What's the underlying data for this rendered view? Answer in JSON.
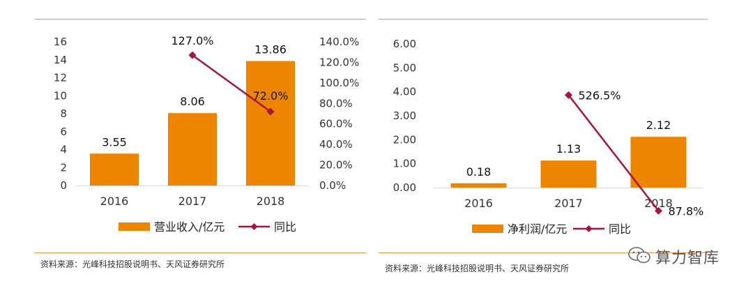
{
  "colors": {
    "bar": "#ee8500",
    "line": "#a8143c",
    "rule": "#e8954e"
  },
  "left": {
    "source": "资料来源：光峰科技招股说明书、天风证券研究所",
    "chart_data": {
      "type": "bar",
      "categories": [
        "2016",
        "2017",
        "2018"
      ],
      "series": [
        {
          "name": "营业收入/亿元",
          "type": "bar",
          "axis": "left",
          "values": [
            3.55,
            8.06,
            13.86
          ],
          "labels": [
            "3.55",
            "8.06",
            "13.86"
          ]
        },
        {
          "name": "同比",
          "type": "line",
          "axis": "right",
          "values": [
            null,
            127.0,
            72.0
          ],
          "labels": [
            "",
            "127.0%",
            "72.0%"
          ]
        }
      ],
      "y_left": {
        "min": 0,
        "max": 16,
        "ticks": [
          "0",
          "2",
          "4",
          "6",
          "8",
          "10",
          "12",
          "14",
          "16"
        ]
      },
      "y_right": {
        "min": 0,
        "max": 140,
        "ticks": [
          "0.0%",
          "20.0%",
          "40.0%",
          "60.0%",
          "80.0%",
          "100.0%",
          "120.0%",
          "140.0%"
        ]
      },
      "legend": "bottom",
      "grid": false
    }
  },
  "right": {
    "source": "资料来源：光峰科技招股说明书、天风证券研究所",
    "chart_data": {
      "type": "bar",
      "categories": [
        "2016",
        "2017",
        "2018"
      ],
      "series": [
        {
          "name": "净利润/亿元",
          "type": "bar",
          "axis": "left",
          "values": [
            0.18,
            1.13,
            2.12
          ],
          "labels": [
            "0.18",
            "1.13",
            "2.12"
          ]
        },
        {
          "name": "同比",
          "type": "line",
          "axis": "right",
          "values": [
            null,
            526.5,
            87.8
          ],
          "labels": [
            "",
            "526.5%",
            "87.8%"
          ]
        }
      ],
      "y_left": {
        "min": 0,
        "max": 6,
        "ticks": [
          "0.00",
          "1.00",
          "2.00",
          "3.00",
          "4.00",
          "5.00",
          "6.00"
        ]
      },
      "legend": "bottom",
      "grid": false
    }
  },
  "watermark": {
    "text": "算力智库",
    "icon": "wechat-icon"
  }
}
